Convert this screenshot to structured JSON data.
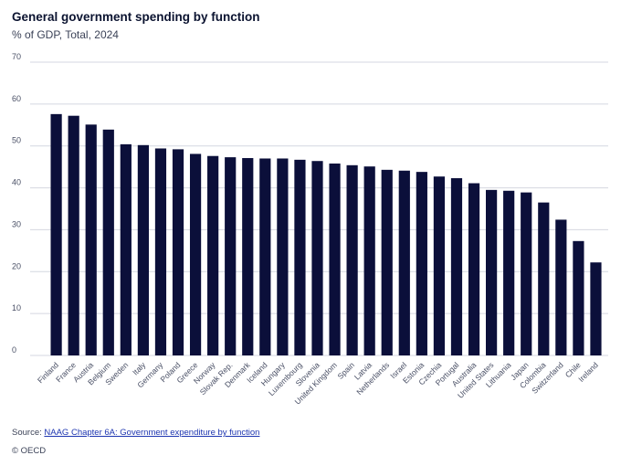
{
  "header": {
    "title": "General government spending by function",
    "subtitle": "% of GDP, Total, 2024"
  },
  "footer": {
    "source_prefix": "Source: ",
    "source_link": "NAAG Chapter 6A: Government expenditure by function",
    "copyright": "© OECD"
  },
  "colors": {
    "bar": "#0b0f3a",
    "grid": "#d4d7e0",
    "axis_text": "#4a5066"
  },
  "chart_data": {
    "type": "bar",
    "title": "General government spending by function",
    "subtitle": "% of GDP, Total, 2024",
    "xlabel": "",
    "ylabel": "",
    "ylim": [
      0,
      70
    ],
    "yticks": [
      0,
      10,
      20,
      30,
      40,
      50,
      60,
      70
    ],
    "grid": true,
    "categories": [
      "Finland",
      "France",
      "Austria",
      "Belgium",
      "Sweden",
      "Italy",
      "Germany",
      "Poland",
      "Greece",
      "Norway",
      "Slovak Rep.",
      "Denmark",
      "Iceland",
      "Hungary",
      "Luxembourg",
      "Slovenia",
      "United Kingdom",
      "Spain",
      "Latvia",
      "Netherlands",
      "Israel",
      "Estonia",
      "Czechia",
      "Portugal",
      "Australia",
      "United States",
      "Lithuania",
      "Japan",
      "Colombia",
      "Switzerland",
      "Chile",
      "Ireland"
    ],
    "values": [
      57.6,
      57.2,
      55.1,
      53.9,
      50.4,
      50.2,
      49.4,
      49.2,
      48.1,
      47.6,
      47.3,
      47.1,
      47.0,
      47.0,
      46.7,
      46.4,
      45.8,
      45.4,
      45.1,
      44.3,
      44.1,
      43.8,
      42.7,
      42.3,
      41.1,
      39.5,
      39.3,
      38.9,
      36.5,
      32.4,
      27.3,
      22.2
    ]
  }
}
